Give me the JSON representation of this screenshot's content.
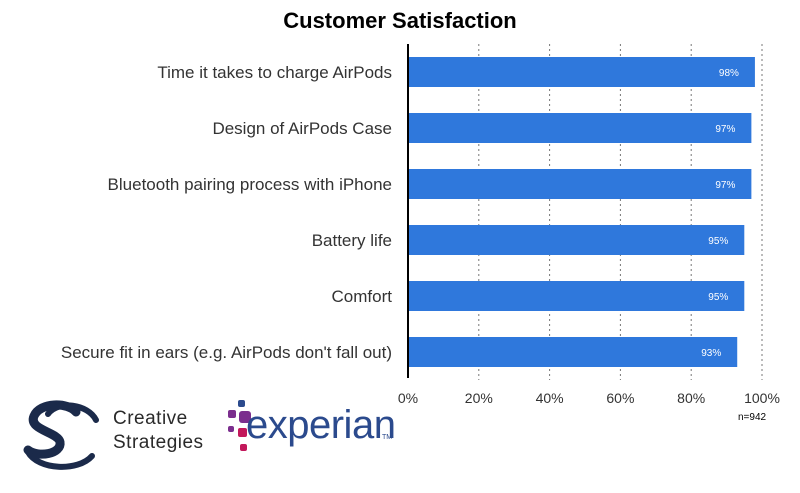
{
  "chart_data": {
    "type": "bar",
    "orientation": "horizontal",
    "title": "Customer Satisfaction",
    "categories": [
      "Time it takes to charge AirPods",
      "Design of AirPods Case",
      "Bluetooth pairing process with iPhone",
      "Battery life",
      "Comfort",
      "Secure fit in ears (e.g. AirPods don't fall out)"
    ],
    "values": [
      98,
      97,
      97,
      95,
      95,
      93
    ],
    "value_labels": [
      "98%",
      "97%",
      "97%",
      "95%",
      "95%",
      "93%"
    ],
    "xlim": [
      0,
      100
    ],
    "xticks": [
      0,
      20,
      40,
      60,
      80,
      100
    ],
    "xtick_labels": [
      "0%",
      "20%",
      "40%",
      "60%",
      "80%",
      "100%"
    ],
    "grid": "vertical dotted",
    "bar_color": "#2f78dc",
    "note": "n=942"
  },
  "branding": {
    "creative_strategies_line1": "Creative",
    "creative_strategies_line2": "Strategies",
    "experian": "experian",
    "experian_tm": "TM",
    "colors": {
      "cs_navy": "#1b2a4a",
      "experian_blue": "#2b4a8d",
      "experian_purple": "#7b2e8e",
      "experian_magenta": "#c2185b"
    }
  }
}
